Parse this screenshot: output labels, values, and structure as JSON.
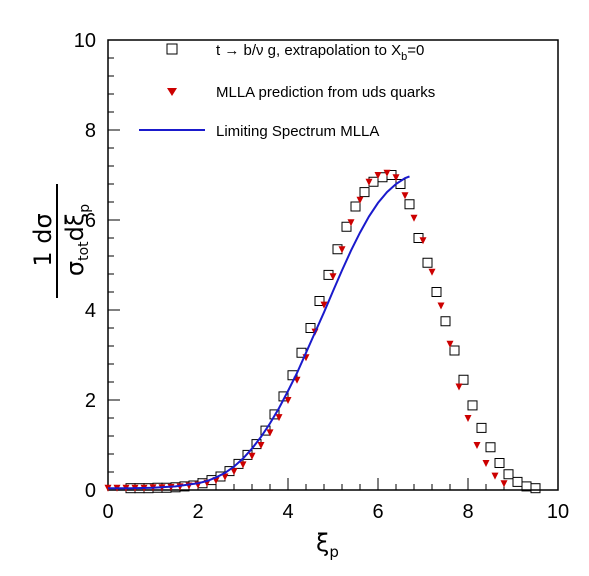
{
  "chart_data": {
    "type": "scatter",
    "xlim": [
      0,
      10
    ],
    "ylim": [
      0,
      10
    ],
    "x_ticks": [
      "0",
      "2",
      "4",
      "6",
      "8",
      "10"
    ],
    "y_ticks": [
      "0",
      "2",
      "4",
      "6",
      "8",
      "10"
    ],
    "xlabel": {
      "main": "ξ",
      "sub": "p"
    },
    "ylabel": {
      "numerator": "1 dσ",
      "sigma": "σ",
      "sigma_sub": "tot",
      "d": "dξ",
      "xi_sub": "p"
    },
    "legend_position": "top-left",
    "legend": [
      {
        "text": "t → b/ν g, extrapolation to X",
        "sub": "b",
        "tail": "=0",
        "marker": "open-square",
        "color": "#000000"
      },
      {
        "text": "MLLA prediction from uds quarks",
        "marker": "red-triangle-down",
        "color": "#cc0000"
      },
      {
        "text": "Limiting Spectrum MLLA",
        "marker": "line",
        "color": "#1a1acc"
      }
    ],
    "series": [
      {
        "marker": "open-square",
        "color": "#000000",
        "x": [
          0.5,
          0.7,
          0.9,
          1.1,
          1.3,
          1.5,
          1.7,
          1.9,
          2.1,
          2.3,
          2.5,
          2.7,
          2.9,
          3.1,
          3.3,
          3.5,
          3.7,
          3.9,
          4.1,
          4.3,
          4.5,
          4.7,
          4.9,
          5.1,
          5.3,
          5.5,
          5.7,
          5.9,
          6.1,
          6.3,
          6.5,
          6.7,
          6.9,
          7.1,
          7.3,
          7.5,
          7.7,
          7.9,
          8.1,
          8.3,
          8.5,
          8.7,
          8.9,
          9.1,
          9.3,
          9.5
        ],
        "y": [
          0.04,
          0.04,
          0.04,
          0.05,
          0.05,
          0.06,
          0.08,
          0.1,
          0.15,
          0.22,
          0.3,
          0.42,
          0.58,
          0.78,
          1.02,
          1.32,
          1.68,
          2.08,
          2.55,
          3.05,
          3.6,
          4.2,
          4.78,
          5.35,
          5.85,
          6.3,
          6.62,
          6.85,
          6.95,
          7.0,
          6.8,
          6.35,
          5.6,
          5.05,
          4.4,
          3.75,
          3.1,
          2.45,
          1.88,
          1.38,
          0.95,
          0.6,
          0.35,
          0.18,
          0.08,
          0.04
        ]
      },
      {
        "marker": "red-triangle-down",
        "color": "#cc0000",
        "x": [
          0.0,
          0.2,
          0.4,
          0.6,
          0.8,
          1.0,
          1.2,
          1.4,
          1.6,
          1.8,
          2.0,
          2.2,
          2.4,
          2.6,
          2.8,
          3.0,
          3.2,
          3.4,
          3.6,
          3.8,
          4.0,
          4.2,
          4.4,
          4.6,
          4.8,
          5.0,
          5.2,
          5.4,
          5.6,
          5.8,
          6.0,
          6.2,
          6.4,
          6.6,
          6.8,
          7.0,
          7.2,
          7.4,
          7.6,
          7.8,
          8.0,
          8.2,
          8.4,
          8.6,
          8.8
        ],
        "y": [
          0.05,
          0.05,
          0.05,
          0.05,
          0.05,
          0.06,
          0.06,
          0.07,
          0.08,
          0.1,
          0.12,
          0.16,
          0.22,
          0.3,
          0.42,
          0.57,
          0.76,
          1.0,
          1.28,
          1.62,
          2.0,
          2.45,
          2.95,
          3.52,
          4.12,
          4.75,
          5.35,
          5.95,
          6.45,
          6.85,
          7.0,
          7.05,
          6.95,
          6.55,
          6.05,
          5.55,
          4.85,
          4.1,
          3.25,
          2.3,
          1.6,
          1.0,
          0.6,
          0.32,
          0.15
        ]
      },
      {
        "marker": "line",
        "color": "#1a1acc",
        "x": [
          0.0,
          0.5,
          1.0,
          1.5,
          2.0,
          2.2,
          2.4,
          2.6,
          2.8,
          3.0,
          3.2,
          3.4,
          3.6,
          3.8,
          4.0,
          4.2,
          4.4,
          4.6,
          4.8,
          5.0,
          5.2,
          5.4,
          5.6,
          5.8,
          6.0,
          6.2,
          6.4,
          6.6,
          6.7
        ],
        "y": [
          0.04,
          0.04,
          0.05,
          0.08,
          0.15,
          0.2,
          0.28,
          0.38,
          0.52,
          0.7,
          0.92,
          1.18,
          1.48,
          1.82,
          2.2,
          2.6,
          3.05,
          3.5,
          3.95,
          4.42,
          4.88,
          5.32,
          5.72,
          6.08,
          6.38,
          6.62,
          6.8,
          6.93,
          6.97
        ]
      }
    ]
  }
}
